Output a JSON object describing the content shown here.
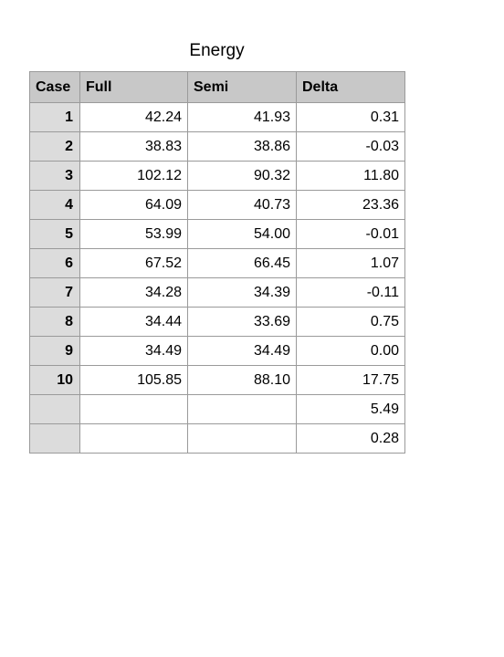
{
  "title": "Energy",
  "chart_data": {
    "type": "table",
    "title": "Energy",
    "columns": [
      "Case",
      "Full",
      "Semi",
      "Delta"
    ],
    "rows": [
      {
        "case": "1",
        "full": "42.24",
        "semi": "41.93",
        "delta": "0.31"
      },
      {
        "case": "2",
        "full": "38.83",
        "semi": "38.86",
        "delta": "-0.03"
      },
      {
        "case": "3",
        "full": "102.12",
        "semi": "90.32",
        "delta": "11.80"
      },
      {
        "case": "4",
        "full": "64.09",
        "semi": "40.73",
        "delta": "23.36"
      },
      {
        "case": "5",
        "full": "53.99",
        "semi": "54.00",
        "delta": "-0.01"
      },
      {
        "case": "6",
        "full": "67.52",
        "semi": "66.45",
        "delta": "1.07"
      },
      {
        "case": "7",
        "full": "34.28",
        "semi": "34.39",
        "delta": "-0.11"
      },
      {
        "case": "8",
        "full": "34.44",
        "semi": "33.69",
        "delta": "0.75"
      },
      {
        "case": "9",
        "full": "34.49",
        "semi": "34.49",
        "delta": "0.00"
      },
      {
        "case": "10",
        "full": "105.85",
        "semi": "88.10",
        "delta": "17.75"
      },
      {
        "case": "",
        "full": "",
        "semi": "",
        "delta": "5.49"
      },
      {
        "case": "",
        "full": "",
        "semi": "",
        "delta": "0.28"
      }
    ]
  }
}
